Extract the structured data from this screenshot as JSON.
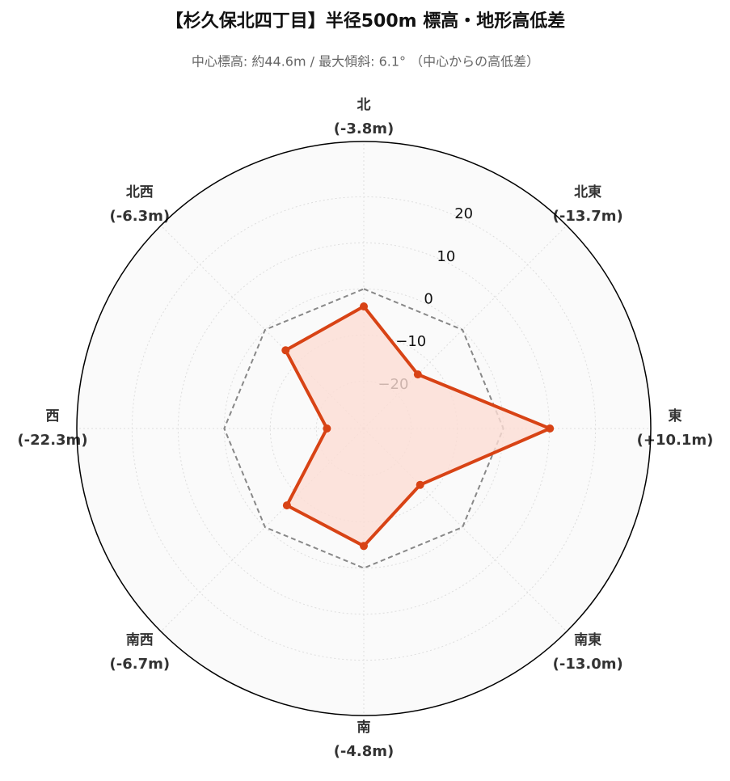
{
  "chart_data": {
    "type": "radar",
    "title": "【杉久保北四丁目】半径500m 標高・地形高低差",
    "subtitle": "中心標高: 約44.6m / 最大傾斜: 6.1° （中心からの高低差）",
    "categories": [
      "北",
      "北東",
      "東",
      "南東",
      "南",
      "南西",
      "西",
      "北西"
    ],
    "values": [
      -3.8,
      -13.7,
      10.1,
      -13.0,
      -4.8,
      -6.7,
      -22.3,
      -6.3
    ],
    "value_labels": [
      "(-3.8m)",
      "(-13.7m)",
      "(+10.1m)",
      "(-13.0m)",
      "(-4.8m)",
      "(-6.7m)",
      "(-22.3m)",
      "(-6.3m)"
    ],
    "color": "#d84315",
    "fill_color": "#fdddd4",
    "reference": 0,
    "rlim": [
      -30.3,
      32
    ],
    "rticks": [
      {
        "value": -20,
        "label": "−20"
      },
      {
        "value": -10,
        "label": "−10"
      },
      0,
      10,
      20
    ],
    "grid": true
  }
}
